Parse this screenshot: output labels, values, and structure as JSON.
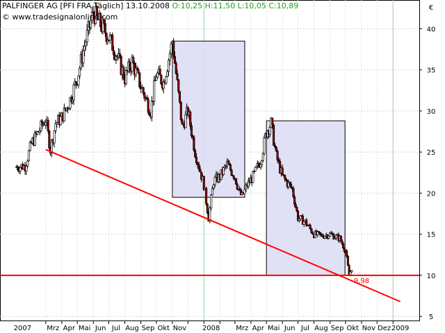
{
  "header": {
    "title": "PALFINGER AG [PFI FRA  Täglich] 13.10.2008",
    "ohlc": "O:10,25 H:11,50 L:10,05 C:10,89"
  },
  "source": "© www.tradesignalonline.com",
  "colors": {
    "background": "#ffffff",
    "candle_bull": "#ffffff",
    "candle_bear": "#8b0000",
    "trendline": "#ff0000",
    "box_fill": "#dcdcf5",
    "box_stroke": "#000000",
    "ohlc_text": "#19a519",
    "level_text": "#ff0000"
  },
  "chart_data": {
    "type": "candlestick",
    "y_unit": "€",
    "ylim": [
      4.5,
      43.5
    ],
    "y_ticks": [
      5,
      10,
      15,
      20,
      25,
      30,
      35,
      40
    ],
    "y_tick_labels": [
      "5",
      "10",
      "15",
      "20",
      "25",
      "30",
      "35",
      "40"
    ],
    "x_tick_labels": [
      "2007",
      "Mrz",
      "Apr",
      "Mai",
      "Jun",
      "Jul",
      "Aug",
      "Sep",
      "Okt",
      "Nov",
      "2008",
      "Mrz",
      "Apr",
      "Mai",
      "Jun",
      "Jul",
      "Aug",
      "Sep",
      "Okt",
      "Nov",
      "Dez",
      "2009"
    ],
    "grid": true,
    "price_path": [
      [
        "2007-01-01",
        23.2
      ],
      [
        "2007-01-20",
        23.3
      ],
      [
        "2007-02-01",
        26.0
      ],
      [
        "2007-02-15",
        27.5
      ],
      [
        "2007-03-01",
        29.0
      ],
      [
        "2007-03-10",
        25.3
      ],
      [
        "2007-03-20",
        28.5
      ],
      [
        "2007-04-01",
        29.2
      ],
      [
        "2007-04-15",
        31.0
      ],
      [
        "2007-05-01",
        34.0
      ],
      [
        "2007-05-15",
        38.0
      ],
      [
        "2007-06-01",
        42.0
      ],
      [
        "2007-06-15",
        40.5
      ],
      [
        "2007-07-01",
        39.0
      ],
      [
        "2007-07-15",
        37.0
      ],
      [
        "2007-08-01",
        34.0
      ],
      [
        "2007-08-15",
        36.0
      ],
      [
        "2007-09-01",
        33.0
      ],
      [
        "2007-09-20",
        30.0
      ],
      [
        "2007-10-01",
        34.5
      ],
      [
        "2007-10-15",
        33.5
      ],
      [
        "2007-11-01",
        38.5
      ],
      [
        "2007-11-20",
        28.0
      ],
      [
        "2007-12-01",
        30.0
      ],
      [
        "2007-12-15",
        25.0
      ],
      [
        "2008-01-01",
        21.0
      ],
      [
        "2008-01-10",
        17.0
      ],
      [
        "2008-01-20",
        21.5
      ],
      [
        "2008-02-01",
        22.0
      ],
      [
        "2008-02-15",
        23.5
      ],
      [
        "2008-03-01",
        22.0
      ],
      [
        "2008-03-10",
        20.0
      ],
      [
        "2008-03-15",
        19.6
      ],
      [
        "2008-03-25",
        21.0
      ],
      [
        "2008-04-05",
        22.0
      ],
      [
        "2008-04-20",
        24.0
      ],
      [
        "2008-05-01",
        27.5
      ],
      [
        "2008-05-10",
        28.5
      ],
      [
        "2008-05-20",
        24.5
      ],
      [
        "2008-06-01",
        22.0
      ],
      [
        "2008-06-20",
        20.5
      ],
      [
        "2008-07-01",
        17.0
      ],
      [
        "2008-07-15",
        16.5
      ],
      [
        "2008-08-01",
        15.0
      ],
      [
        "2008-08-15",
        14.8
      ],
      [
        "2008-09-01",
        15.0
      ],
      [
        "2008-09-20",
        14.5
      ],
      [
        "2008-10-01",
        13.0
      ],
      [
        "2008-10-08",
        10.0
      ],
      [
        "2008-10-13",
        10.89
      ]
    ],
    "annotations": {
      "trendline": {
        "from": [
          "2007-03-01",
          25.3
        ],
        "to": [
          "2009-01-15",
          6.8
        ]
      },
      "support_line": {
        "y": 10.0
      },
      "boxes": [
        {
          "x": [
            "2007-11-01",
            "2008-03-20"
          ],
          "y": [
            19.5,
            38.5
          ]
        },
        {
          "x": [
            "2008-05-01",
            "2008-09-30"
          ],
          "y": [
            10.0,
            28.8
          ]
        }
      ],
      "level_label": {
        "text": "9,98",
        "date": "2008-10-13",
        "y": 9.9
      }
    }
  }
}
